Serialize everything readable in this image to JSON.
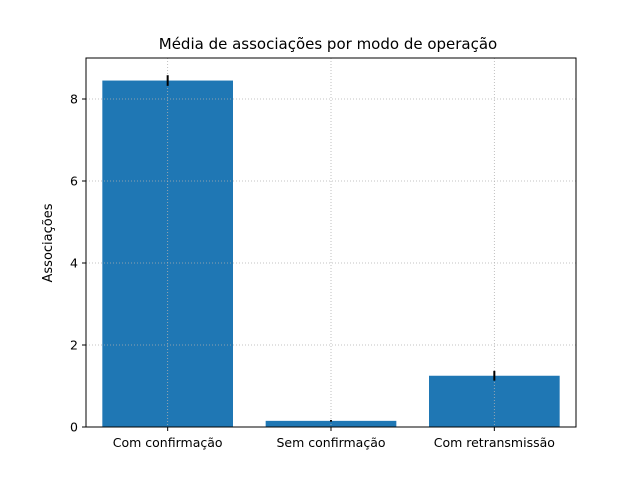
{
  "chart_data": {
    "type": "bar",
    "title": "Média de associações por modo de operação",
    "xlabel": "",
    "ylabel": "Associações",
    "categories": [
      "Com confirmação",
      "Sem confirmação",
      "Com retransmissão"
    ],
    "values": [
      8.45,
      0.15,
      1.25
    ],
    "error": [
      0.13,
      0.02,
      0.12
    ],
    "ylim": [
      0,
      9
    ],
    "yticks": [
      "0",
      "2",
      "4",
      "6",
      "8"
    ],
    "grid": true,
    "grid_style": "dotted",
    "legend": "none",
    "bar_color": "#1f77b4",
    "error_color": "#000000",
    "grid_color": "#b0b0b0"
  }
}
